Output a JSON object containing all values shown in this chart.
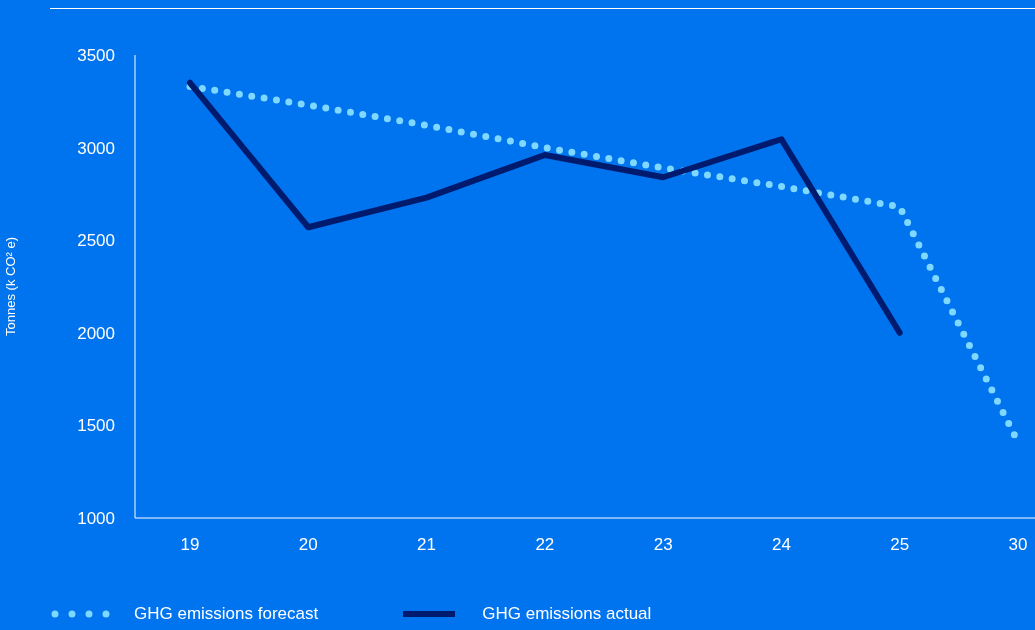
{
  "chart_data": {
    "type": "line",
    "ylabel": "Tonnes (k CO² e)",
    "categories": [
      "19",
      "20",
      "21",
      "22",
      "23",
      "24",
      "25",
      "30"
    ],
    "series": [
      {
        "name": "GHG emissions forecast",
        "color": "#7fd8ff",
        "line_style": "dotted",
        "values": [
          3330,
          3230,
          3120,
          3000,
          2890,
          2790,
          2680,
          1410
        ]
      },
      {
        "name": "GHG emissions actual",
        "color": "#001a6e",
        "line_style": "solid",
        "values": [
          3350,
          2570,
          2730,
          2960,
          2840,
          3045,
          2000,
          null
        ]
      }
    ],
    "ylim": [
      1000,
      3500
    ],
    "yticks": [
      1000,
      1500,
      2000,
      2500,
      3000,
      3500
    ],
    "legend": "bottom left"
  }
}
